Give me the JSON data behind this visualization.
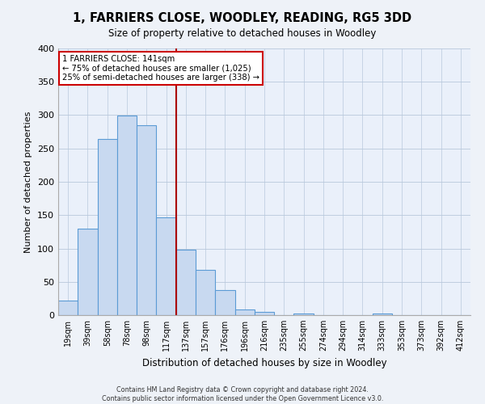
{
  "title": "1, FARRIERS CLOSE, WOODLEY, READING, RG5 3DD",
  "subtitle": "Size of property relative to detached houses in Woodley",
  "xlabel": "Distribution of detached houses by size in Woodley",
  "ylabel": "Number of detached properties",
  "bar_labels": [
    "19sqm",
    "39sqm",
    "58sqm",
    "78sqm",
    "98sqm",
    "117sqm",
    "137sqm",
    "157sqm",
    "176sqm",
    "196sqm",
    "216sqm",
    "235sqm",
    "255sqm",
    "274sqm",
    "294sqm",
    "314sqm",
    "333sqm",
    "353sqm",
    "373sqm",
    "392sqm",
    "412sqm"
  ],
  "bar_heights": [
    22,
    130,
    264,
    299,
    285,
    147,
    98,
    68,
    37,
    9,
    5,
    0,
    3,
    0,
    0,
    0,
    2,
    0,
    0,
    0,
    0
  ],
  "bar_color": "#c8d9f0",
  "bar_edge_color": "#5b9bd5",
  "vline_x_index": 6,
  "vline_color": "#aa0000",
  "annotation_title": "1 FARRIERS CLOSE: 141sqm",
  "annotation_line1": "← 75% of detached houses are smaller (1,025)",
  "annotation_line2": "25% of semi-detached houses are larger (338) →",
  "annotation_box_color": "#ffffff",
  "annotation_box_edge": "#cc0000",
  "ylim": [
    0,
    400
  ],
  "yticks": [
    0,
    50,
    100,
    150,
    200,
    250,
    300,
    350,
    400
  ],
  "footnote1": "Contains HM Land Registry data © Crown copyright and database right 2024.",
  "footnote2": "Contains public sector information licensed under the Open Government Licence v3.0.",
  "bg_color": "#eef2f8",
  "plot_bg_color": "#eaf0fa"
}
